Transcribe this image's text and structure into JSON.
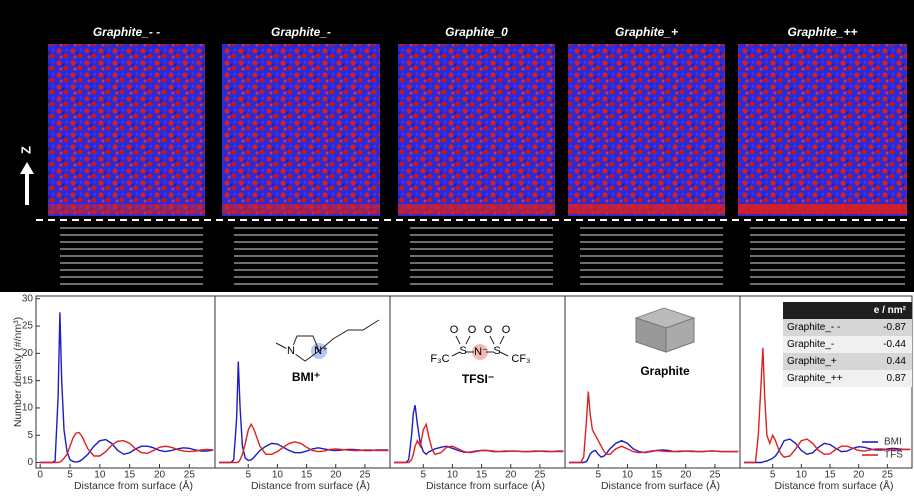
{
  "snapshots": {
    "titles": [
      "Graphite_- -",
      "Graphite_-",
      "Graphite_0",
      "Graphite_+",
      "Graphite_++"
    ],
    "axis_label": "Z"
  },
  "structures": [
    {
      "label": "BMI⁺",
      "atoms": [
        "N",
        "N⁺"
      ]
    },
    {
      "label": "TFSI⁻",
      "atoms": [
        "O",
        "O",
        "O",
        "O",
        "S",
        "S",
        "N⁻",
        "F₃C",
        "CF₃"
      ]
    },
    {
      "label": "Graphite"
    }
  ],
  "table": {
    "header": "e / nm²",
    "rows": [
      [
        "Graphite_- -",
        -0.87
      ],
      [
        "Graphite_-",
        -0.44
      ],
      [
        "Graphite_+",
        0.44
      ],
      [
        "Graphite_++",
        0.87
      ]
    ]
  },
  "chart_data": [
    {
      "type": "line",
      "xlabel": "Distance from surface (Å)",
      "ylabel": "Number density (#/nm³)",
      "x": [
        0,
        1,
        2,
        2.5,
        3,
        3.3,
        3.6,
        4,
        4.5,
        5,
        5.5,
        6,
        6.5,
        7,
        8,
        9,
        10,
        11,
        12,
        13,
        14,
        15,
        16,
        17,
        18,
        19,
        20,
        21,
        22,
        23,
        24,
        25,
        26,
        27,
        28,
        29
      ],
      "xlim": [
        -0.7,
        29.3
      ],
      "xticks": [
        0,
        5,
        10,
        15,
        20,
        25
      ],
      "ylim": [
        -1,
        30.5
      ],
      "yticks": [
        0,
        5,
        10,
        15,
        20,
        25,
        30
      ],
      "series": [
        {
          "color": "#1c1cc8",
          "values": [
            0,
            0,
            0,
            0.3,
            12,
            27.5,
            15,
            6,
            2,
            0.5,
            0.2,
            0.1,
            0.2,
            0.5,
            1.5,
            3,
            4,
            4.2,
            3.5,
            2.2,
            1.5,
            1.8,
            2.5,
            3,
            3,
            2.7,
            2.2,
            2,
            2.2,
            2.5,
            2.7,
            2.6,
            2.3,
            2.1,
            2.1,
            2.3
          ]
        },
        {
          "color": "#e02020",
          "values": [
            0,
            0,
            0,
            0,
            0,
            0.1,
            0.3,
            0.8,
            1.5,
            3,
            4.5,
            5.4,
            5.5,
            4.8,
            2.5,
            1.2,
            1.2,
            2,
            3.2,
            3.9,
            4,
            3.5,
            2.5,
            1.8,
            1.7,
            2.2,
            2.8,
            3,
            2.8,
            2.4,
            2.1,
            2,
            2.1,
            2.3,
            2.4,
            2.3
          ]
        }
      ]
    },
    {
      "type": "line",
      "xlabel": "Distance from surface (Å)",
      "x": [
        0,
        1,
        2,
        2.5,
        3,
        3.3,
        3.6,
        4,
        4.5,
        5,
        5.5,
        6,
        6.5,
        7,
        8,
        9,
        10,
        11,
        12,
        13,
        14,
        15,
        16,
        17,
        18,
        19,
        20,
        21,
        22,
        23,
        24,
        25,
        26,
        27,
        28,
        29
      ],
      "xlim": [
        -0.7,
        29.3
      ],
      "xticks": [
        5,
        10,
        15,
        20,
        25
      ],
      "ylim": [
        -1,
        30.5
      ],
      "series": [
        {
          "color": "#1c1cc8",
          "values": [
            0,
            0,
            0,
            0.5,
            8,
            18.5,
            10,
            3,
            0.8,
            0.4,
            0.5,
            1,
            1.6,
            2.2,
            3,
            3.5,
            3.4,
            2.8,
            2.2,
            1.8,
            1.8,
            2.1,
            2.5,
            2.7,
            2.5,
            2.3,
            2.2,
            2.3,
            2.4,
            2.4,
            2.3,
            2.2,
            2.2,
            2.3,
            2.3,
            2.3
          ]
        },
        {
          "color": "#e02020",
          "values": [
            0,
            0,
            0,
            0,
            0,
            0.1,
            0.5,
            1.5,
            3.5,
            6,
            7,
            6,
            4.5,
            3,
            1.5,
            1.5,
            2,
            2.8,
            3.5,
            3.8,
            3.5,
            2.8,
            2.2,
            2,
            2.1,
            2.4,
            2.5,
            2.4,
            2.3,
            2.2,
            2.2,
            2.3,
            2.3,
            2.2,
            2.2,
            2.2
          ]
        }
      ]
    },
    {
      "type": "line",
      "xlabel": "Distance from surface (Å)",
      "x": [
        0,
        1,
        2,
        2.5,
        3,
        3.3,
        3.6,
        4,
        4.5,
        5,
        5.5,
        6,
        6.5,
        7,
        8,
        9,
        10,
        11,
        12,
        13,
        14,
        15,
        16,
        17,
        18,
        19,
        20,
        21,
        22,
        23,
        24,
        25,
        26,
        27,
        28,
        29
      ],
      "xlim": [
        -0.7,
        29.3
      ],
      "xticks": [
        5,
        10,
        15,
        20,
        25
      ],
      "ylim": [
        -1,
        30.5
      ],
      "series": [
        {
          "color": "#1c1cc8",
          "values": [
            0,
            0,
            0,
            0.5,
            5,
            9,
            10.5,
            7,
            3.5,
            2,
            1.5,
            2,
            2.2,
            2.5,
            2.8,
            3,
            2.6,
            2.2,
            1.9,
            1.9,
            2.1,
            2.2,
            2.2,
            2,
            2,
            2.1,
            2.1,
            2.1,
            2,
            2,
            2.1,
            2.1,
            2,
            2,
            2.1,
            2.1
          ]
        },
        {
          "color": "#e02020",
          "values": [
            0,
            0,
            0,
            0,
            0.5,
            1.5,
            3,
            4,
            3,
            6,
            7,
            4.5,
            2.5,
            1.5,
            1.8,
            2.8,
            3,
            2.5,
            2,
            1.8,
            2,
            2.2,
            2.2,
            2.1,
            2,
            2,
            2.1,
            2.1,
            2,
            2,
            2,
            2.1,
            2.1,
            2,
            2,
            2
          ]
        }
      ]
    },
    {
      "type": "line",
      "xlabel": "Distance from surface (Å)",
      "x": [
        0,
        1,
        2,
        2.5,
        3,
        3.3,
        3.6,
        4,
        4.5,
        5,
        5.5,
        6,
        6.5,
        7,
        8,
        9,
        10,
        11,
        12,
        13,
        14,
        15,
        16,
        17,
        18,
        19,
        20,
        21,
        22,
        23,
        24,
        25,
        26,
        27,
        28,
        29
      ],
      "xlim": [
        -0.7,
        29.3
      ],
      "xticks": [
        5,
        10,
        15,
        20,
        25
      ],
      "ylim": [
        -1,
        30.5
      ],
      "series": [
        {
          "color": "#1c1cc8",
          "values": [
            0,
            0,
            0,
            0,
            0.2,
            0.8,
            1.5,
            2,
            2.2,
            1.5,
            1,
            1.2,
            1.8,
            2.5,
            3.5,
            4,
            3.5,
            2.5,
            2,
            1.8,
            2,
            2.2,
            2.3,
            2.2,
            2,
            2,
            2.1,
            2.1,
            2,
            2,
            2.1,
            2.1,
            2,
            2,
            2,
            2
          ]
        },
        {
          "color": "#e02020",
          "values": [
            0,
            0,
            0,
            1,
            8,
            13,
            9,
            6,
            5,
            4,
            3,
            2,
            1.5,
            1.5,
            2.5,
            3,
            2.5,
            2,
            1.8,
            1.9,
            2.1,
            2.2,
            2.1,
            2,
            2,
            2.1,
            2.1,
            2,
            2,
            2,
            2.1,
            2.1,
            2,
            2,
            2,
            2
          ]
        }
      ]
    },
    {
      "type": "line",
      "xlabel": "Distance from surface (Å)",
      "x": [
        0,
        1,
        2,
        2.5,
        3,
        3.3,
        3.6,
        4,
        4.5,
        5,
        5.5,
        6,
        6.5,
        7,
        8,
        9,
        10,
        11,
        12,
        13,
        14,
        15,
        16,
        17,
        18,
        19,
        20,
        21,
        22,
        23,
        24,
        25,
        26,
        27,
        28,
        29
      ],
      "xlim": [
        -0.7,
        29.3
      ],
      "xticks": [
        5,
        10,
        15,
        20,
        25
      ],
      "ylim": [
        -1,
        30.5
      ],
      "legend": "lower right",
      "series": [
        {
          "name": "BMI",
          "color": "#1c1cc8",
          "values": [
            0,
            0,
            0,
            0,
            0,
            0.1,
            0.2,
            0.3,
            0.5,
            0.8,
            1.2,
            2,
            3,
            4,
            4.3,
            3.5,
            2.2,
            1.5,
            1.8,
            2.8,
            3.5,
            3.3,
            2.6,
            2,
            2.1,
            2.6,
            2.9,
            2.8,
            2.5,
            2.3,
            2.3,
            2.5,
            2.6,
            2.5,
            2.4,
            2.4
          ]
        },
        {
          "name": "TFS",
          "color": "#e02020",
          "values": [
            0,
            0,
            0,
            5,
            15,
            21,
            12,
            5,
            3.5,
            5,
            4,
            2.5,
            1.5,
            1,
            1.2,
            2.5,
            4,
            4.3,
            3.5,
            2.2,
            1.5,
            1.6,
            2.4,
            3,
            3,
            2.6,
            2.2,
            2.1,
            2.3,
            2.5,
            2.5,
            2.4,
            2.3,
            2.3,
            2.4,
            2.4
          ]
        }
      ]
    }
  ]
}
